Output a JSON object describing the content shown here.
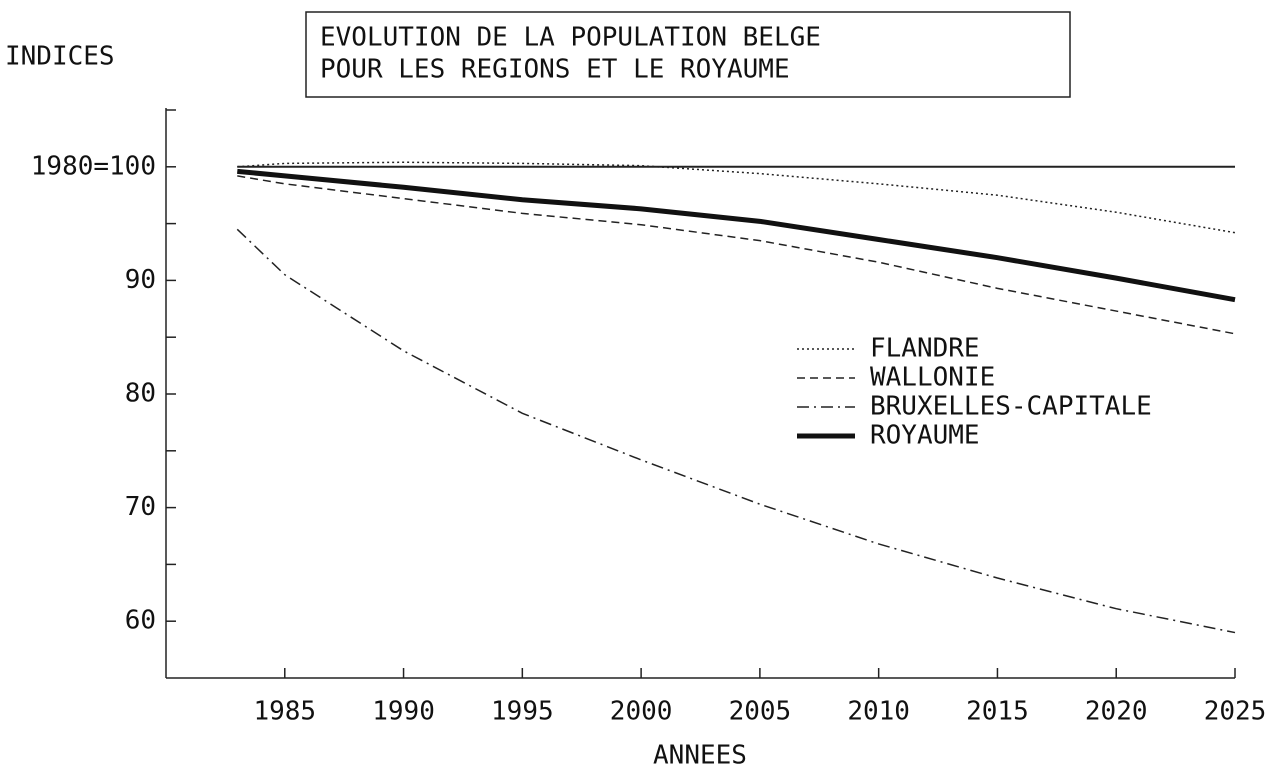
{
  "chart_data": {
    "type": "line",
    "title": [
      "EVOLUTION DE LA POPULATION BELGE",
      "POUR LES REGIONS ET LE ROYAUME"
    ],
    "y_label": "INDICES",
    "x_label": "ANNEES",
    "x": [
      1983,
      1985,
      1990,
      1995,
      2000,
      2005,
      2010,
      2015,
      2020,
      2025
    ],
    "series": [
      {
        "name": "FLANDRE",
        "color": "#222",
        "dash": "2,3",
        "width": 1.5,
        "values": [
          100,
          100.3,
          100.4,
          100.3,
          100.1,
          99.4,
          98.5,
          97.5,
          96,
          94.2
        ]
      },
      {
        "name": "WALLONIE",
        "color": "#222",
        "dash": "8,5",
        "width": 1.5,
        "values": [
          99.2,
          98.5,
          97.2,
          95.9,
          94.9,
          93.5,
          91.6,
          89.3,
          87.3,
          85.3
        ]
      },
      {
        "name": "BRUXELLES-CAPITALE",
        "color": "#222",
        "dash": "12,5,2,5",
        "width": 1.5,
        "values": [
          94.5,
          90.5,
          83.8,
          78.3,
          74.2,
          70.3,
          66.8,
          63.8,
          61.1,
          59
        ]
      },
      {
        "name": "ROYAUME",
        "color": "#111",
        "dash": "none",
        "width": 5,
        "values": [
          99.6,
          99.2,
          98.2,
          97.1,
          96.3,
          95.2,
          93.6,
          92,
          90.2,
          88.3
        ]
      }
    ],
    "reference_line": 100,
    "xlim": [
      1980,
      2025
    ],
    "xticks": [
      1985,
      1990,
      1995,
      2000,
      2005,
      2010,
      2015,
      2020,
      2025
    ],
    "ylim": [
      55,
      105
    ],
    "yticks": [
      60,
      70,
      80,
      90,
      {
        "value": 100,
        "label": "1980=100"
      }
    ],
    "yminor": [
      65,
      75,
      85,
      95,
      105
    ]
  }
}
